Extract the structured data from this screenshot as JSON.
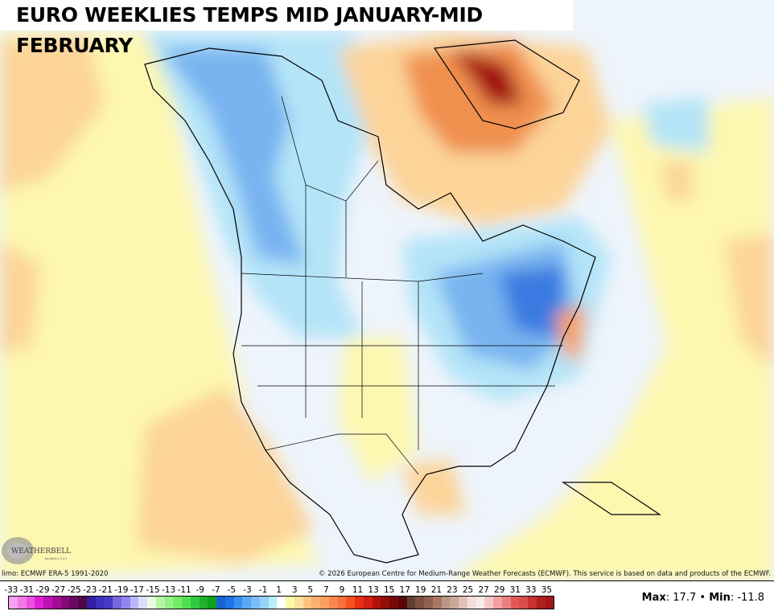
{
  "title": "EURO WEEKLIES TEMPS MID JANUARY-MID FEBRUARY",
  "logo": {
    "text": "WeatherBELL",
    "subtext": "Analytics LLC"
  },
  "caption_left": "limo: ECMWF ERA-5 1991-2020",
  "caption_right": "© 2026 European Centre for Medium-Range Weather Forecasts (ECMWF). This service is based on data and products of the ECMWF.",
  "colorbar": {
    "labels": [
      "-33",
      "-31",
      "-29",
      "-27",
      "-25",
      "-23",
      "-21",
      "-19",
      "-17",
      "-15",
      "-13",
      "-11",
      "-9",
      "-7",
      "-5",
      "-3",
      "-1",
      "1",
      "3",
      "5",
      "7",
      "9",
      "11",
      "13",
      "15",
      "17",
      "19",
      "21",
      "23",
      "25",
      "27",
      "29",
      "31",
      "33",
      "35"
    ],
    "colors": [
      "#f5a0f0",
      "#f27ae8",
      "#ec50e0",
      "#e020d8",
      "#c010b8",
      "#a00c98",
      "#880878",
      "#6a0860",
      "#4e0848",
      "#3020a0",
      "#4030c0",
      "#4a3ac8",
      "#7868e0",
      "#9484f0",
      "#b8b8f8",
      "#dcdcfc",
      "#e8fce0",
      "#b4f6a4",
      "#96f088",
      "#74ea68",
      "#4ee050",
      "#30c840",
      "#20b030",
      "#10a020",
      "#1862d0",
      "#2072e8",
      "#3890f0",
      "#58a8f8",
      "#78bcf8",
      "#98d0f8",
      "#b4eef8",
      "#ffffff",
      "#fafaa0",
      "#fde0a0",
      "#fcc480",
      "#fbb070",
      "#faa060",
      "#f88850",
      "#f87040",
      "#f85020",
      "#e83010",
      "#d02010",
      "#b01008",
      "#901008",
      "#780808",
      "#580808",
      "#604030",
      "#7a5040",
      "#906050",
      "#a87860",
      "#b89888",
      "#c8a898",
      "#e0c0b8",
      "#f2e0d8",
      "#f8ecea",
      "#f8c8c8",
      "#f0a0a0",
      "#e88080",
      "#e05858",
      "#d84c4c",
      "#c83030",
      "#b02020",
      "#a01818"
    ]
  },
  "stats": {
    "max_label": "Max",
    "max": "17.7",
    "separator": "•",
    "min_label": "Min",
    "min": "-11.8"
  },
  "colors": {
    "ocean_neutral": "#eef4fb",
    "warm_light": "#fdf7b0",
    "warm": "#fcd49a",
    "hot": "#f07040",
    "very_hot": "#a01010",
    "cold_light": "#b4e4f8",
    "cold": "#78b4f0",
    "very_cold": "#3a7ae0"
  }
}
